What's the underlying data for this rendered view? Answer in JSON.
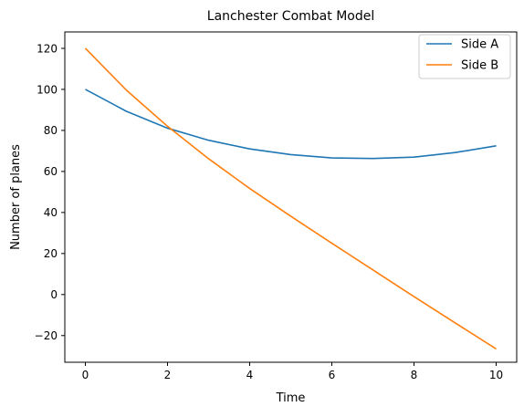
{
  "chart_data": {
    "type": "line",
    "title": "Lanchester Combat Model",
    "xlabel": "Time",
    "ylabel": "Number of planes",
    "xlim": [
      -0.5,
      10.5
    ],
    "ylim": [
      -33,
      128
    ],
    "xticks": [
      0,
      2,
      4,
      6,
      8,
      10
    ],
    "yticks": [
      -20,
      0,
      20,
      40,
      60,
      80,
      100,
      120
    ],
    "xtick_labels": [
      "0",
      "2",
      "4",
      "6",
      "8",
      "10"
    ],
    "ytick_labels": [
      "−20",
      "0",
      "20",
      "40",
      "60",
      "80",
      "100",
      "120"
    ],
    "grid": false,
    "legend_position": "top-right",
    "x": [
      0,
      1,
      2,
      3,
      4,
      5,
      6,
      7,
      8,
      9,
      10
    ],
    "series": [
      {
        "name": "Side A",
        "color": "#1f77b4",
        "values": [
          100,
          89.3,
          81.1,
          75.2,
          71.0,
          68.2,
          66.6,
          66.3,
          67.0,
          69.2,
          72.5
        ]
      },
      {
        "name": "Side B",
        "color": "#ff7f0e",
        "values": [
          120,
          99.6,
          82.0,
          66.2,
          51.7,
          38.2,
          25.0,
          12.0,
          -1.0,
          -13.8,
          -26.5
        ]
      }
    ]
  }
}
